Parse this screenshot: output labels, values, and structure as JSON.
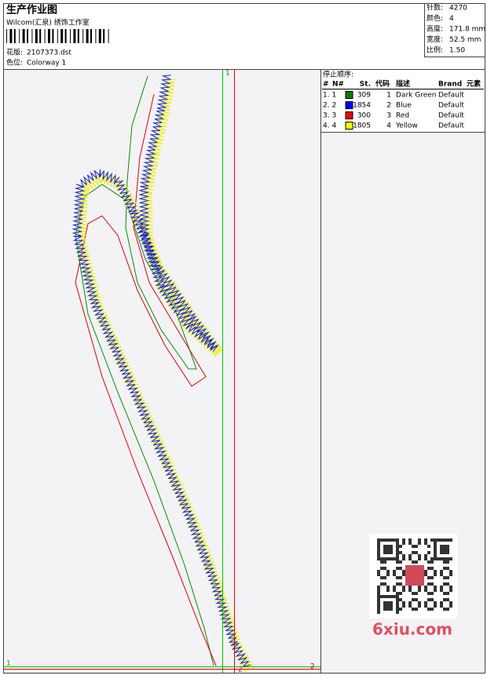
{
  "header": {
    "title": "生产作业图",
    "company": "Wilcom(汇泉) 绣饰工作室",
    "design_label": "花版:",
    "design": "2107373.dst",
    "colorway_label": "色位:",
    "colorway": "Colorway 1"
  },
  "info": [
    {
      "label": "针数:",
      "value": "4270"
    },
    {
      "label": "颜色:",
      "value": "4"
    },
    {
      "label": "高度:",
      "value": "171.8 mm"
    },
    {
      "label": "宽度:",
      "value": "52.5 mm"
    },
    {
      "label": "比例:",
      "value": "1.50"
    }
  ],
  "stop_sequence": {
    "title": "停止顺序:",
    "columns": [
      "#",
      "N#",
      "St.",
      "代码",
      "描述",
      "Brand",
      "元素"
    ],
    "rows": [
      {
        "index": "1. 1",
        "color": "#008000",
        "stitches": 309,
        "code": 1,
        "description": "Dark Green",
        "brand": "Default"
      },
      {
        "index": "2. 2",
        "color": "#0000ff",
        "stitches": 1854,
        "code": 2,
        "description": "Blue",
        "brand": "Default"
      },
      {
        "index": "3. 3",
        "color": "#ff0000",
        "stitches": 300,
        "code": 3,
        "description": "Red",
        "brand": "Default"
      },
      {
        "index": "4. 4",
        "color": "#ffff00",
        "stitches": 1805,
        "code": 4,
        "description": "Yellow",
        "brand": "Default"
      }
    ]
  },
  "markers": [
    "1",
    "1",
    "2",
    "2"
  ],
  "watermark": "6xiu.com"
}
